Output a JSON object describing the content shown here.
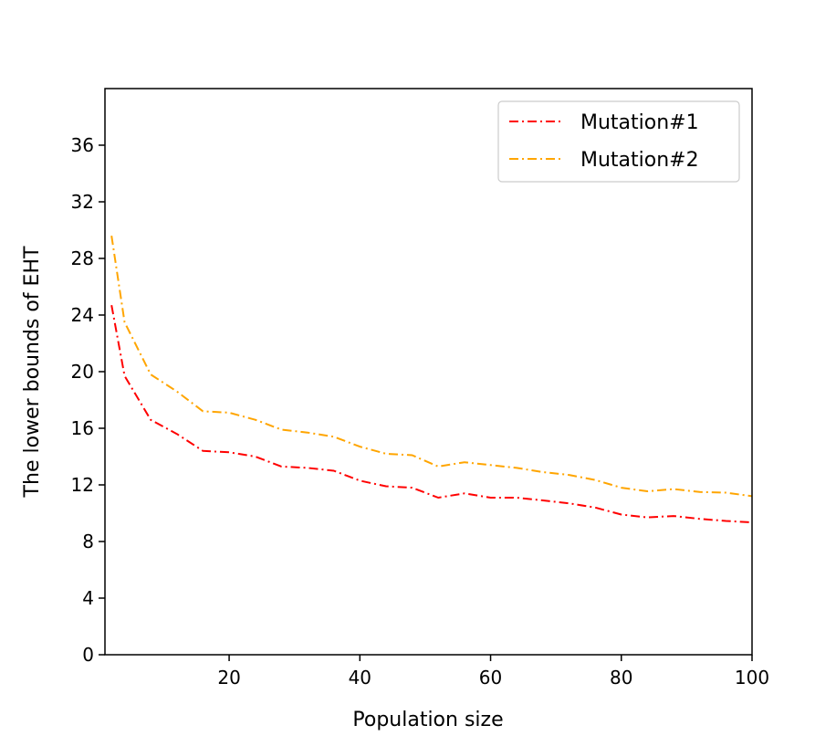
{
  "chart_data": {
    "type": "line",
    "xlabel": "Population size",
    "ylabel": "The lower bounds of EHT",
    "xlim": [
      1,
      100
    ],
    "ylim": [
      0,
      40
    ],
    "xticks": [
      20,
      40,
      60,
      80,
      100
    ],
    "yticks": [
      0,
      4,
      8,
      12,
      16,
      20,
      24,
      28,
      32,
      36
    ],
    "grid": false,
    "legend_position": "top-right",
    "x": [
      2,
      4,
      8,
      12,
      16,
      20,
      24,
      28,
      32,
      36,
      40,
      44,
      48,
      52,
      56,
      60,
      64,
      68,
      72,
      76,
      80,
      84,
      88,
      92,
      96,
      100
    ],
    "series": [
      {
        "name": "Mutation#1",
        "color": "#ff0000",
        "values": [
          24.7,
          19.7,
          16.6,
          15.6,
          14.4,
          14.3,
          14.0,
          13.3,
          13.2,
          13.0,
          12.3,
          11.9,
          11.8,
          11.1,
          11.4,
          11.1,
          11.1,
          10.9,
          10.7,
          10.4,
          9.9,
          9.7,
          9.8,
          9.6,
          9.45,
          9.35
        ]
      },
      {
        "name": "Mutation#2",
        "color": "#ffa500",
        "values": [
          29.6,
          23.5,
          19.8,
          18.6,
          17.2,
          17.1,
          16.6,
          15.9,
          15.7,
          15.4,
          14.7,
          14.2,
          14.1,
          13.3,
          13.6,
          13.4,
          13.2,
          12.9,
          12.7,
          12.35,
          11.8,
          11.55,
          11.7,
          11.5,
          11.45,
          11.2
        ]
      }
    ]
  }
}
